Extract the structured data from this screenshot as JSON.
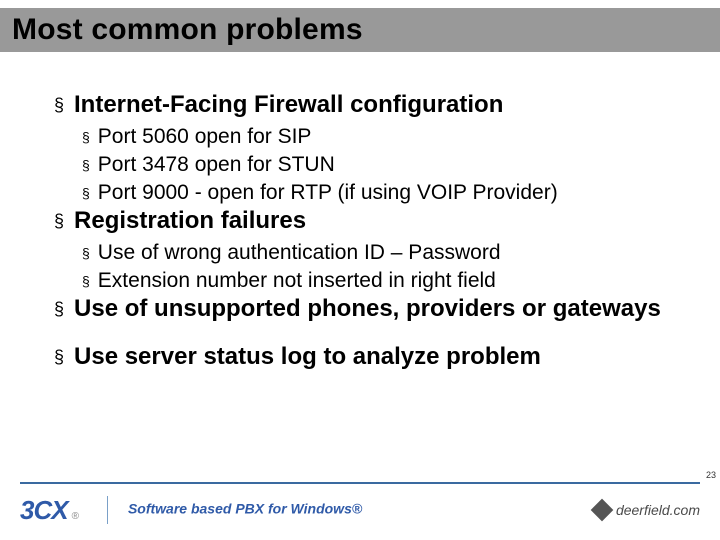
{
  "accent_bar_color": "#999999",
  "divider_color": "#3a6aa0",
  "brand_color": "#2f5aa8",
  "title": "Most common problems",
  "sections": [
    {
      "heading": "Internet-Facing Firewall configuration",
      "items": [
        "Port 5060 open for SIP",
        "Port 3478 open for STUN",
        "Port 9000 - open for RTP (if using VOIP Provider)"
      ]
    },
    {
      "heading": "Registration failures",
      "items": [
        "Use of wrong authentication ID – Password",
        "Extension number not inserted in right field"
      ]
    },
    {
      "heading": "Use of unsupported phones, providers or gateways",
      "items": []
    },
    {
      "heading": "Use server status log to analyze problem",
      "items": []
    }
  ],
  "footer": {
    "logo_text": "3CX",
    "logo_reg": "®",
    "tagline": "Software based PBX for Windows®",
    "partner": "deerfield.com"
  },
  "page_number": "23"
}
